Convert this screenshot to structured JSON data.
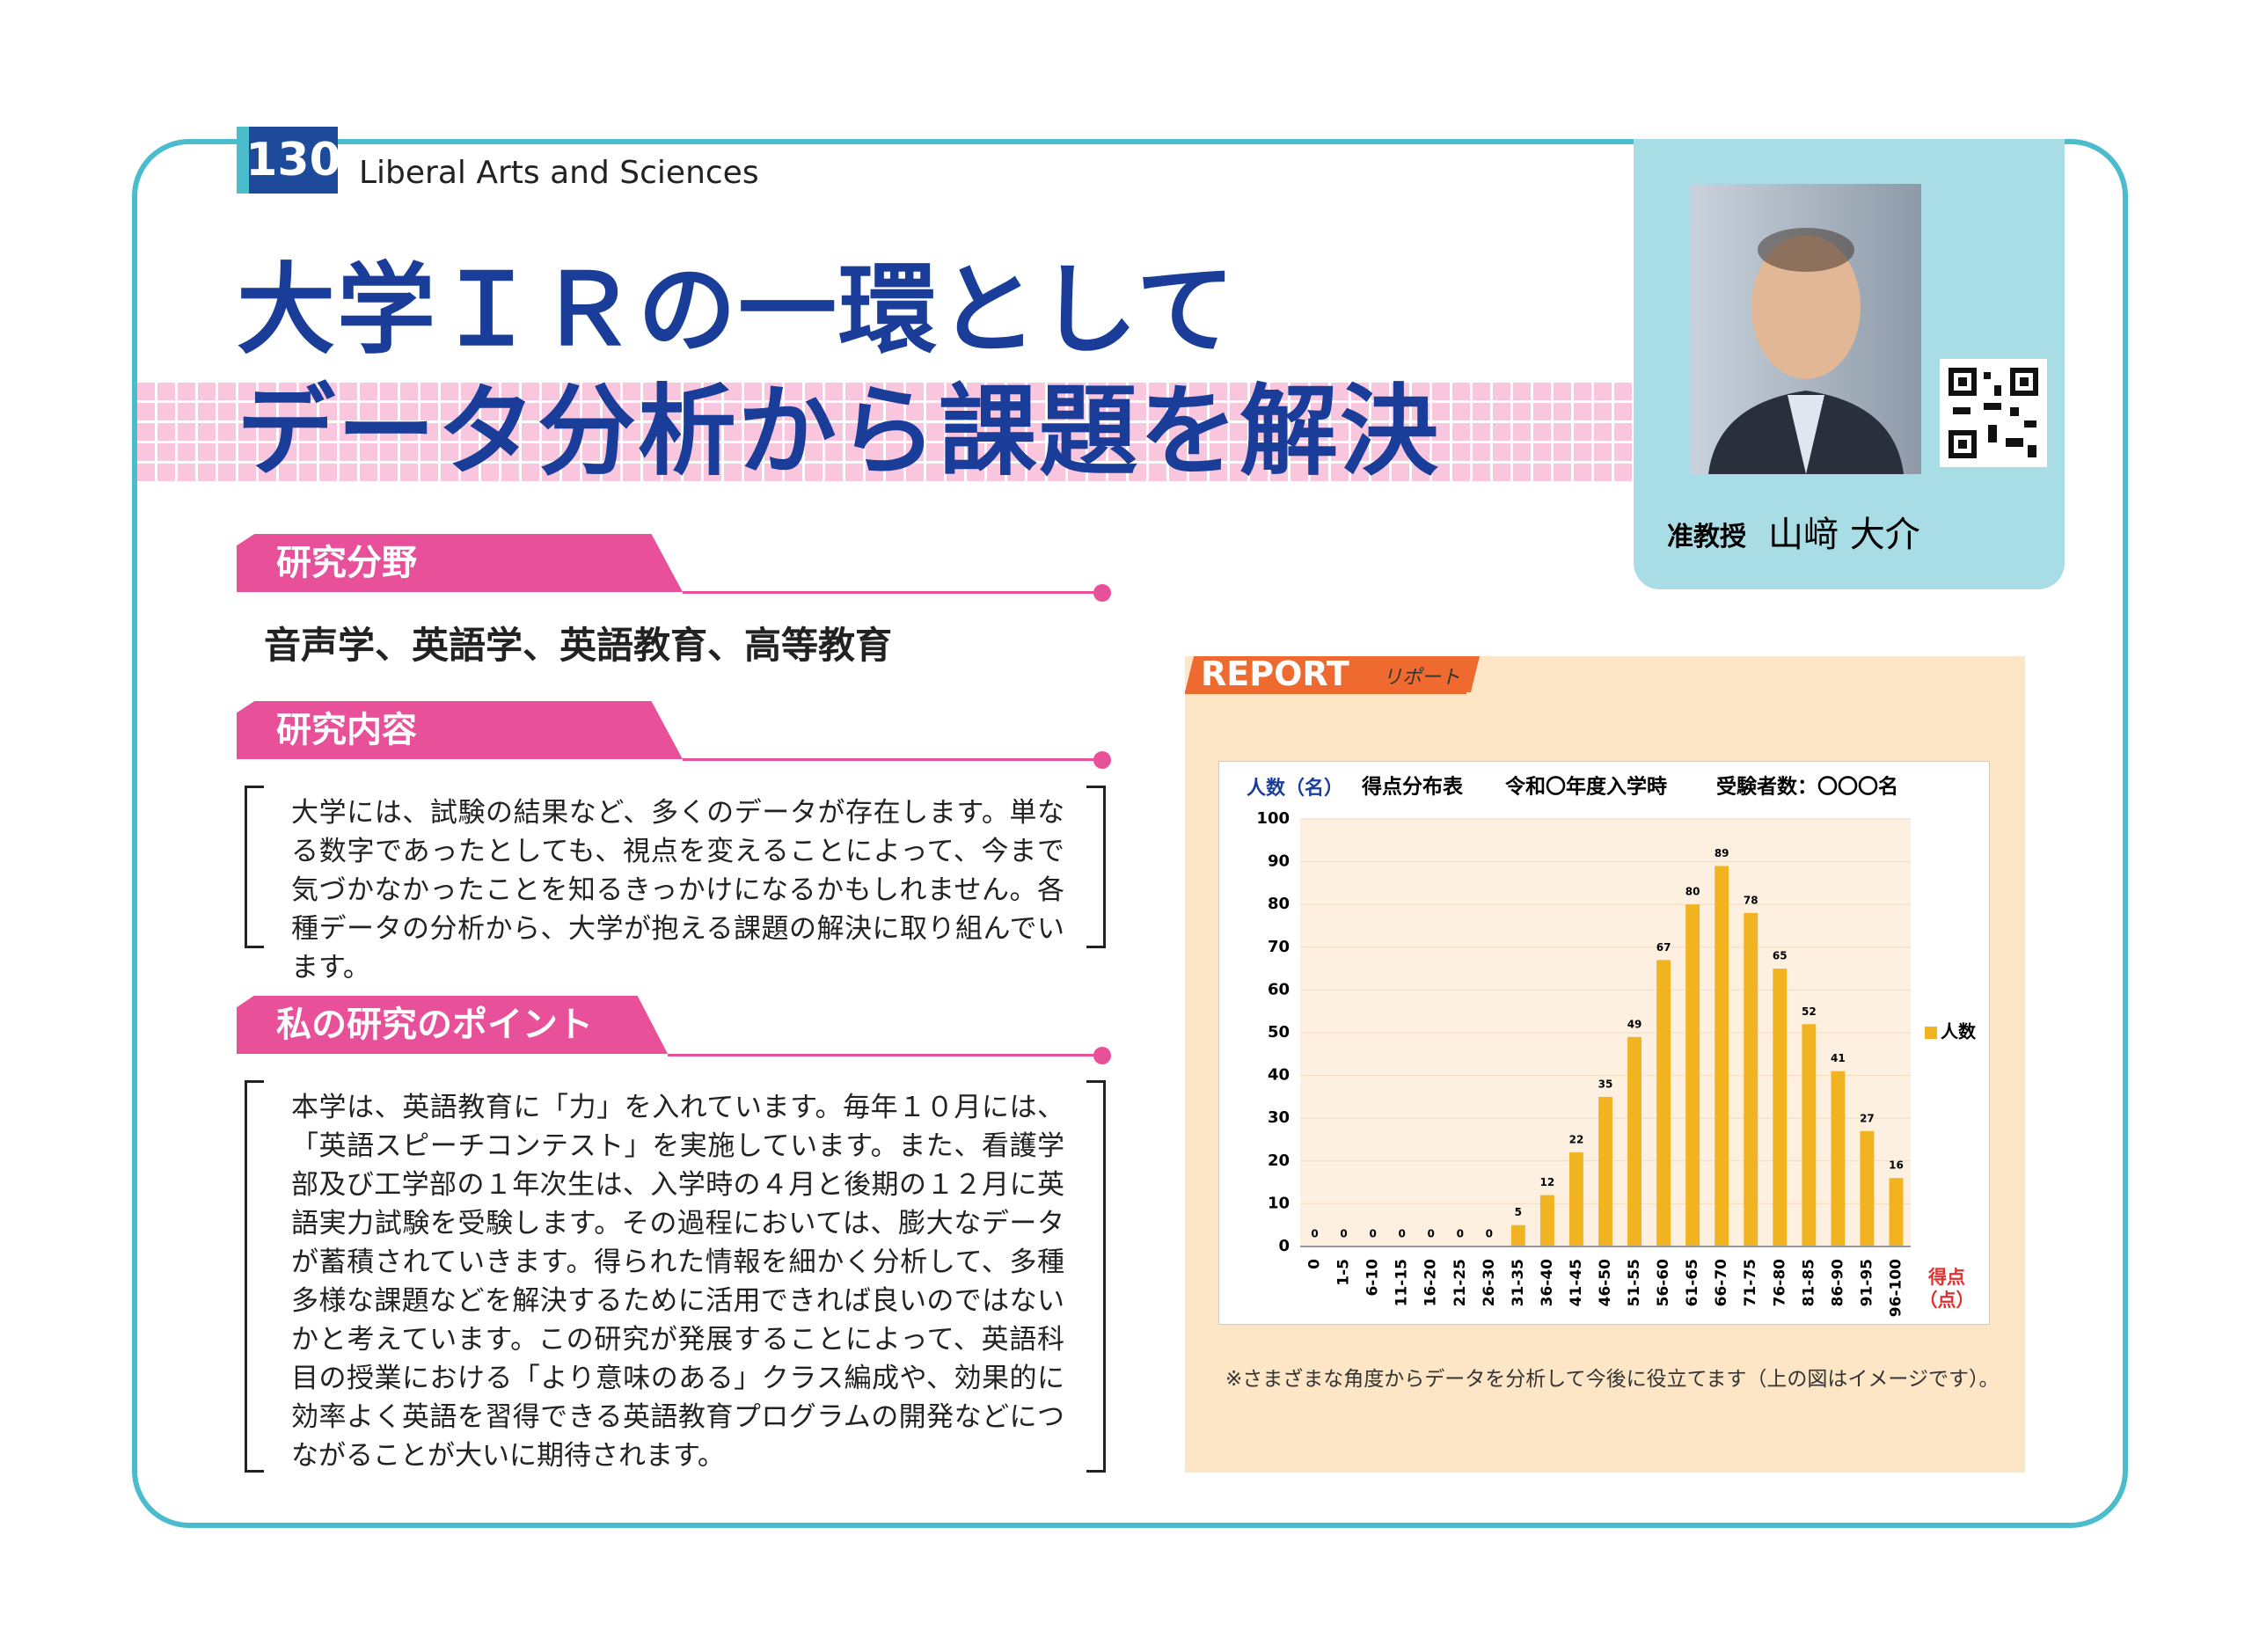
{
  "page_number": "130",
  "department": "Liberal Arts and Sciences",
  "title": [
    "大学ＩＲの一環として",
    "データ分析から課題を解決"
  ],
  "profile": {
    "role": "准教授",
    "name": "山﨑 大介"
  },
  "sections": [
    {
      "heading": "研究分野",
      "body": "音声学、英語学、英語教育、高等教育"
    },
    {
      "heading": "研究内容",
      "body": "大学には、試験の結果など、多くのデータが存在します。単なる数字であったとしても、視点を変えることによって、今まで気づかなかったことを知るきっかけになるかもしれません。各種データの分析から、大学が抱える課題の解決に取り組んでいます。"
    },
    {
      "heading": "私の研究のポイント",
      "body": "本学は、英語教育に「力」を入れています。毎年１０月には、「英語スピーチコンテスト」を実施しています。また、看護学部及び工学部の１年次生は、入学時の４月と後期の１２月に英語実力試験を受験します。その過程においては、膨大なデータが蓄積されていきます。得られた情報を細かく分析して、多種多様な課題などを解決するために活用できれば良いのではないかと考えています。この研究が発展することによって、英語科目の授業における「より意味のある」クラス編成や、効果的に効率よく英語を習得できる英語教育プログラムの開発などにつながることが大いに期待されます。"
    }
  ],
  "report": {
    "label": "REPORT",
    "sublabel": "リポート",
    "caption": "※さまざまな角度からデータを分析して今後に役立てます（上の図はイメージです）。"
  },
  "chart_data": {
    "type": "bar",
    "title": "得点分布表",
    "subtitle": "令和〇年度入学時",
    "note": "受験者数：〇〇〇名",
    "y_label": "人数（名）",
    "x_label": "得点\n（点）",
    "categories": [
      "0",
      "1-5",
      "6-10",
      "11-15",
      "16-20",
      "21-25",
      "26-30",
      "31-35",
      "36-40",
      "41-45",
      "46-50",
      "51-55",
      "56-60",
      "61-65",
      "66-70",
      "71-75",
      "76-80",
      "81-85",
      "86-90",
      "91-95",
      "96-100"
    ],
    "series": [
      {
        "name": "人数",
        "color": "#f2b320",
        "values": [
          0,
          0,
          0,
          0,
          0,
          0,
          0,
          5,
          12,
          22,
          35,
          49,
          67,
          80,
          89,
          78,
          65,
          52,
          41,
          27,
          16
        ]
      }
    ],
    "ylim": [
      0,
      100
    ],
    "yticks": [
      0,
      10,
      20,
      30,
      40,
      50,
      60,
      70,
      80,
      90,
      100
    ],
    "grid": true,
    "legend": "right"
  }
}
